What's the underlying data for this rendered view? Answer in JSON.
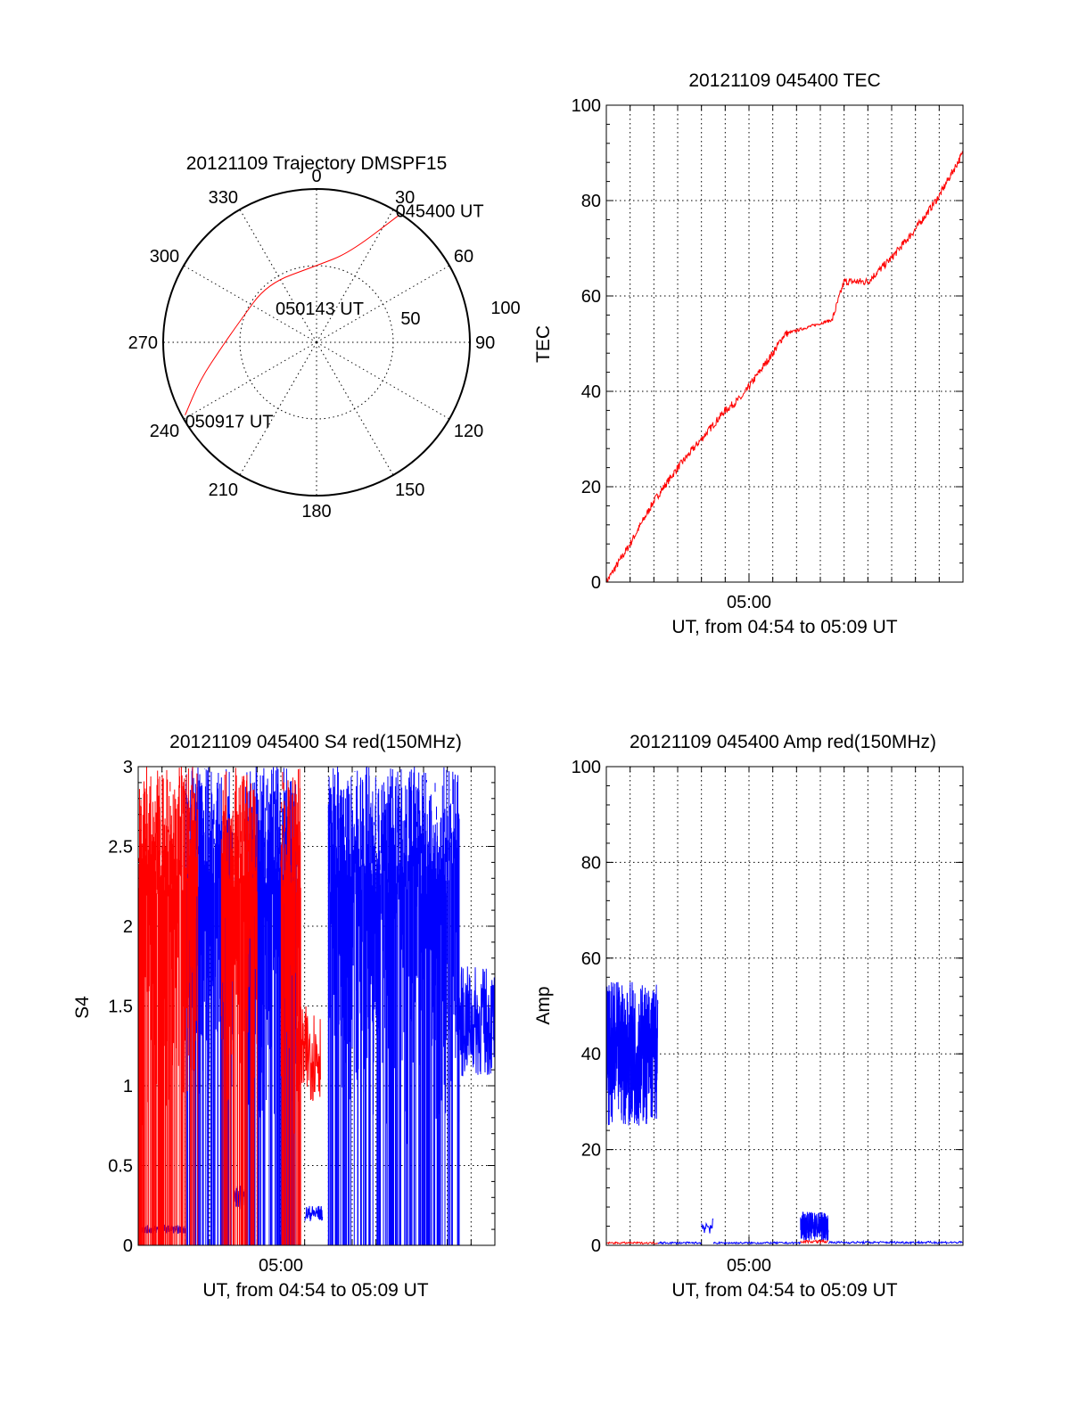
{
  "chart_data": [
    {
      "type": "polar",
      "title": "20121109 Trajectory DMSPF15",
      "azimuth_labels": [
        "0",
        "30",
        "60",
        "90",
        "120",
        "150",
        "180",
        "210",
        "240",
        "270",
        "300",
        "330"
      ],
      "radial_labels": [
        "50",
        "100"
      ],
      "rlim": [
        0,
        100
      ],
      "series": [
        {
          "color": "#ff0000",
          "points": [
            {
              "az": 33,
              "r": 99
            },
            {
              "az": 20,
              "r": 62
            },
            {
              "az": 0,
              "r": 50
            },
            {
              "az": -40,
              "r": 50
            },
            {
              "az": -75,
              "r": 52
            },
            {
              "az": -93,
              "r": 62
            },
            {
              "az": -108,
              "r": 80
            },
            {
              "az": -119,
              "r": 98
            }
          ]
        }
      ],
      "annotations": [
        {
          "text": "045400 UT",
          "az": 31,
          "r": 100
        },
        {
          "text": "050143 UT",
          "az": 0,
          "r": 48
        },
        {
          "text": "050917 UT",
          "az": -121,
          "r": 100
        }
      ]
    },
    {
      "type": "line",
      "title": "20121109 045400 TEC",
      "xlabel": "UT, from 04:54 to 05:09 UT",
      "ylabel": "TEC",
      "xlim": [
        "04:54",
        "05:09"
      ],
      "ylim": [
        0,
        100
      ],
      "xticks": [
        {
          "at": "05:00",
          "label": "05:00"
        }
      ],
      "yticks": [
        0,
        20,
        40,
        60,
        80,
        100
      ],
      "grid": true,
      "series": [
        {
          "color": "#ff0000",
          "x": [
            "04:54",
            "04:55",
            "04:56",
            "04:57",
            "04:58",
            "04:59",
            "04:59:45",
            "05:00",
            "05:01",
            "05:01:30",
            "05:03:30",
            "05:04",
            "05:05",
            "05:06",
            "05:07",
            "05:08",
            "05:09"
          ],
          "y": [
            0,
            8,
            17,
            24,
            30,
            36,
            39,
            41,
            48,
            52,
            55,
            63,
            63,
            68,
            74,
            81,
            90
          ]
        }
      ]
    },
    {
      "type": "line",
      "title": "20121109 045400 S4 red(150MHz)",
      "xlabel": "UT, from 04:54 to 05:09 UT",
      "ylabel": "S4",
      "xlim": [
        "04:54",
        "05:09"
      ],
      "ylim": [
        0,
        3
      ],
      "xticks": [
        {
          "at": "05:00",
          "label": "05:00"
        }
      ],
      "yticks": [
        "0",
        "0.5",
        "1",
        "1.5",
        "2",
        "2.5",
        "3"
      ],
      "grid": true,
      "series": [
        {
          "color": "#0000ff",
          "segments": [
            {
              "from": "04:54",
              "to": "04:56:00",
              "level": 0.1
            },
            {
              "from": "04:58:00",
              "to": "04:58:30",
              "level": 0.3
            },
            {
              "from": "05:01:00",
              "to": "05:01:45",
              "level": 0.2
            },
            {
              "from": "05:07:30",
              "to": "05:09",
              "level": 1.4
            }
          ],
          "saturated_ranges": [
            {
              "from": "04:56:00",
              "to": "04:58:00",
              "level": 3
            },
            {
              "from": "04:58:30",
              "to": "05:00:40",
              "level": 3
            },
            {
              "from": "05:02:00",
              "to": "05:07:30",
              "level": 3
            }
          ]
        },
        {
          "color": "#ff0000",
          "saturated_ranges": [
            {
              "from": "04:54",
              "to": "04:56:30",
              "level": 3
            },
            {
              "from": "04:57:30",
              "to": "04:59:00",
              "level": 3
            },
            {
              "from": "05:00:00",
              "to": "05:00:50",
              "level": 3
            }
          ],
          "segments": [
            {
              "from": "05:00:40",
              "to": "05:01:40",
              "level": 1.2
            }
          ]
        }
      ]
    },
    {
      "type": "line",
      "title": "20121109 045400 Amp red(150MHz)",
      "xlabel": "UT, from 04:54 to 05:09 UT",
      "ylabel": "Amp",
      "xlim": [
        "04:54",
        "05:09"
      ],
      "ylim": [
        0,
        100
      ],
      "xticks": [
        {
          "at": "05:00",
          "label": "05:00"
        }
      ],
      "yticks": [
        0,
        20,
        40,
        60,
        80,
        100
      ],
      "grid": true,
      "series": [
        {
          "color": "#0000ff",
          "segments": [
            {
              "from": "04:54",
              "to": "04:56:10",
              "level": 40,
              "spread": 15
            },
            {
              "from": "04:56:10",
              "to": "04:58:00",
              "level": 0.5
            },
            {
              "from": "04:58:00",
              "to": "04:58:30",
              "level": 4
            },
            {
              "from": "04:58:30",
              "to": "05:02:10",
              "level": 0.5
            },
            {
              "from": "05:02:10",
              "to": "05:03:20",
              "level": 4,
              "spread": 3
            },
            {
              "from": "05:03:20",
              "to": "05:09",
              "level": 0.6
            }
          ]
        },
        {
          "color": "#ff0000",
          "segments": [
            {
              "from": "04:54",
              "to": "04:56:10",
              "level": 0.5
            },
            {
              "from": "05:02:10",
              "to": "05:03:20",
              "level": 0.8
            }
          ]
        }
      ]
    }
  ]
}
